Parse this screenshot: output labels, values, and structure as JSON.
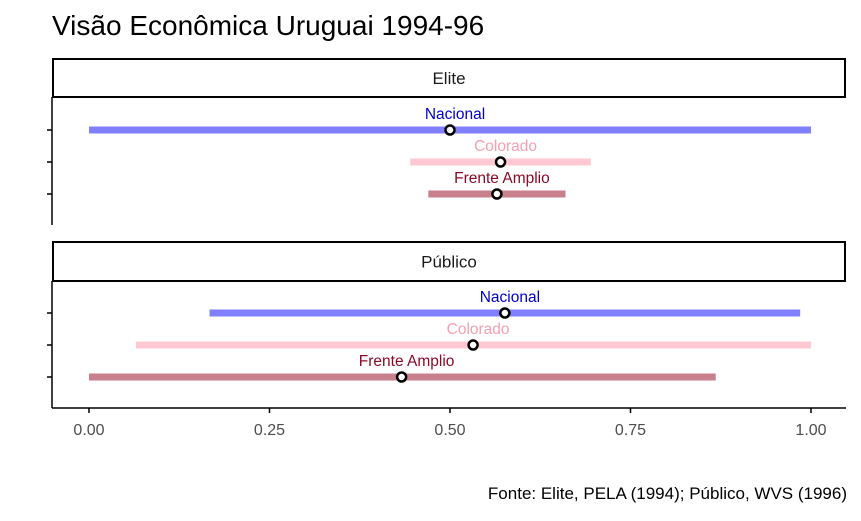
{
  "chart_data": {
    "type": "dot-range",
    "title": "Visão Econômica Uruguai 1994-96",
    "caption": "Fonte: Elite, PELA (1994); Público, WVS (1996)",
    "xlim": [
      0,
      1
    ],
    "x_ticks": [
      "0.00",
      "0.25",
      "0.50",
      "0.75",
      "1.00"
    ],
    "x_tick_values": [
      0,
      0.25,
      0.5,
      0.75,
      1
    ],
    "grid": false,
    "colors": {
      "Nacional": "#0000cc",
      "Colorado": "#f4a0b0",
      "Frente Amplio": "#8b0a28"
    },
    "bar_colors": {
      "Nacional": "#8080ff",
      "Colorado": "#ffc8d2",
      "Frente Amplio": "#c8808c"
    },
    "panels": [
      {
        "name": "Elite",
        "series": [
          {
            "name": "Nacional",
            "low": 0.0,
            "high": 1.0,
            "mean": 0.5
          },
          {
            "name": "Colorado",
            "low": 0.445,
            "high": 0.695,
            "mean": 0.57
          },
          {
            "name": "Frente Amplio",
            "low": 0.47,
            "high": 0.66,
            "mean": 0.565
          }
        ]
      },
      {
        "name": "Público",
        "series": [
          {
            "name": "Nacional",
            "low": 0.167,
            "high": 0.985,
            "mean": 0.576
          },
          {
            "name": "Colorado",
            "low": 0.065,
            "high": 1.0,
            "mean": 0.532
          },
          {
            "name": "Frente Amplio",
            "low": 0.0,
            "high": 0.868,
            "mean": 0.433
          }
        ]
      }
    ]
  }
}
